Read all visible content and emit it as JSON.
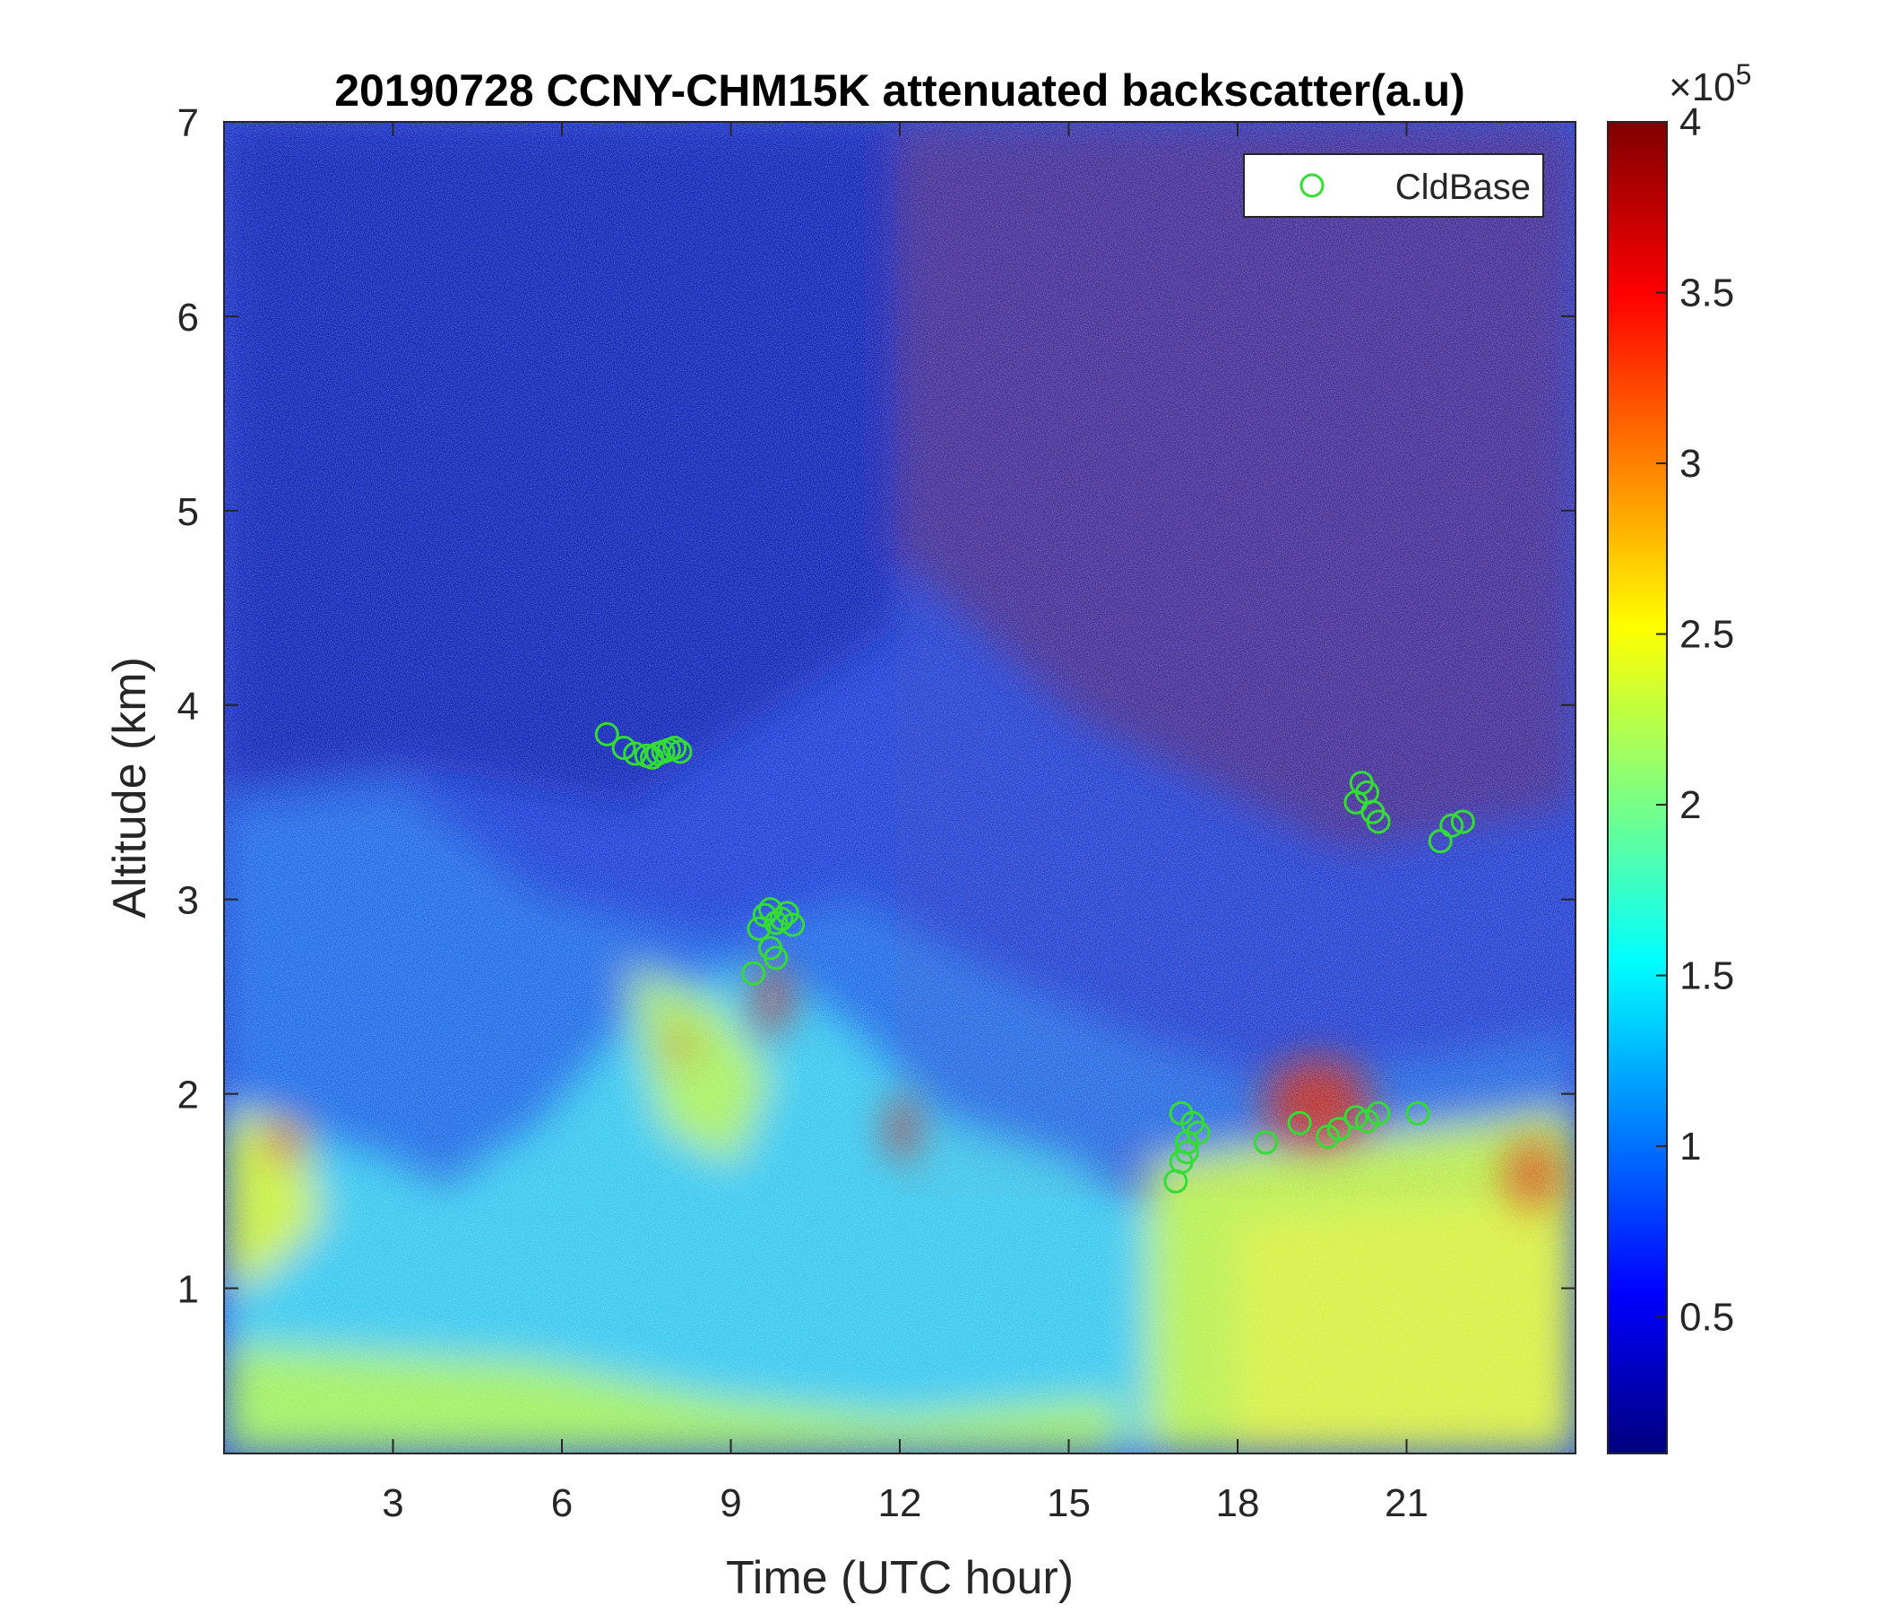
{
  "chart_data": {
    "type": "heatmap",
    "title": "20190728 CCNY-CHM15K attenuated backscatter(a.u)",
    "xlabel": "Time (UTC hour)",
    "ylabel": "Altitude (km)",
    "xlim": [
      0,
      24
    ],
    "ylim": [
      0.15,
      7
    ],
    "xticks": [
      3,
      6,
      9,
      12,
      15,
      18,
      21
    ],
    "xtick_labels": [
      "3",
      "6",
      "9",
      "12",
      "15",
      "18",
      "21"
    ],
    "yticks": [
      1,
      2,
      3,
      4,
      5,
      6,
      7
    ],
    "ytick_labels": [
      "1",
      "2",
      "3",
      "4",
      "5",
      "6",
      "7"
    ],
    "colorbar": {
      "colormap": "jet",
      "range": [
        0.1,
        4.0
      ],
      "ticks": [
        0.5,
        1,
        1.5,
        2,
        2.5,
        3,
        3.5,
        4
      ],
      "tick_labels": [
        "0.5",
        "1",
        "1.5",
        "2",
        "2.5",
        "3",
        "3.5",
        "4"
      ],
      "multiplier_base": "×10",
      "multiplier_exp": "5"
    },
    "legend": {
      "placement": "top-right",
      "entries": [
        {
          "name": "CldBase",
          "marker": "circle",
          "color": "#33dd33"
        }
      ]
    },
    "series": [
      {
        "name": "CldBase",
        "marker": "circle",
        "color": "#33dd33",
        "x": [
          6.8,
          7.1,
          7.3,
          7.5,
          7.6,
          7.7,
          7.8,
          7.9,
          8.0,
          8.1,
          9.4,
          9.5,
          9.6,
          9.7,
          9.8,
          9.9,
          10.0,
          10.1,
          9.7,
          9.8,
          16.9,
          17.0,
          17.1,
          17.2,
          17.3,
          17.0,
          17.1,
          18.5,
          19.1,
          19.6,
          19.8,
          20.1,
          20.3,
          20.5,
          20.1,
          20.2,
          20.3,
          20.4,
          20.5,
          21.2,
          21.6,
          21.8,
          22.0
        ],
        "y": [
          3.85,
          3.78,
          3.75,
          3.74,
          3.73,
          3.75,
          3.76,
          3.77,
          3.78,
          3.76,
          2.62,
          2.85,
          2.92,
          2.95,
          2.88,
          2.9,
          2.93,
          2.87,
          2.75,
          2.7,
          1.55,
          1.65,
          1.75,
          1.85,
          1.8,
          1.9,
          1.7,
          1.75,
          1.85,
          1.78,
          1.82,
          1.88,
          1.86,
          1.9,
          3.5,
          3.6,
          3.55,
          3.45,
          3.4,
          1.9,
          3.3,
          3.38,
          3.4
        ]
      }
    ]
  }
}
